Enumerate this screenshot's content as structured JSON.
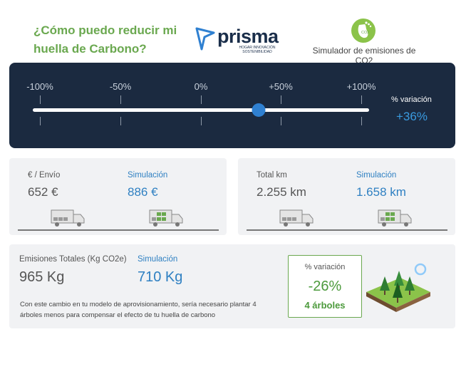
{
  "header": {
    "question": "¿Cómo puedo reducir mi huella de Carbono?",
    "brand": "prisma",
    "brand_tagline": "HOGAR INNOVACIÓN SOSTENIBILIDAD",
    "co2_badge": "CO2",
    "simulator_title": "Simulador de emisiones de CO2"
  },
  "slider": {
    "ticks": [
      "-100%",
      "-50%",
      "0%",
      "+50%",
      "+100%"
    ],
    "value_percent": 36,
    "min": -100,
    "max": 100,
    "variation_label": "% variación",
    "variation_value": "+36%"
  },
  "cost_card": {
    "label": "€ / Envío",
    "value": "652 €",
    "sim_label": "Simulación",
    "sim_value": "886 €"
  },
  "km_card": {
    "label": "Total km",
    "value": "2.255 km",
    "sim_label": "Simulación",
    "sim_value": "1.658 km"
  },
  "emissions_card": {
    "label": "Emisiones Totales (Kg CO2e)",
    "value": "965 Kg",
    "sim_label": "Simulación",
    "sim_value": "710 Kg",
    "note": "Con este cambio en tu modelo de aprovisionamiento, sería necesario plantar 4 árboles menos para compensar el efecto de tu huella de carbono",
    "result_label": "% variación",
    "result_pct": "-26%",
    "result_trees": "4 árboles"
  },
  "colors": {
    "accent_green": "#6aa84f",
    "accent_blue": "#2f80c2",
    "panel_dark": "#1b2a40"
  }
}
